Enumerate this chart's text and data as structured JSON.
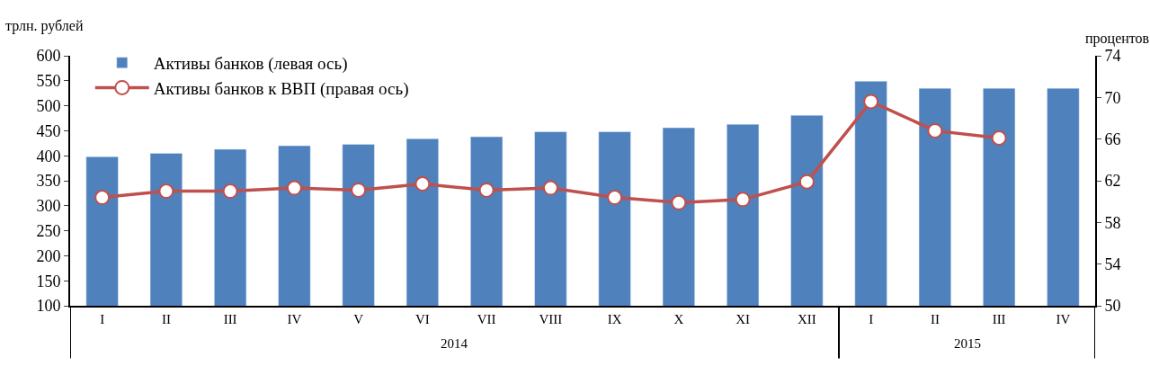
{
  "chart_data": {
    "type": "bar",
    "ylabel": "трлн. рублей",
    "y2label": "процентов",
    "categories": [
      "I",
      "II",
      "III",
      "IV",
      "V",
      "VI",
      "VII",
      "VIII",
      "IX",
      "X",
      "XI",
      "XII",
      "I",
      "II",
      "III",
      "IV"
    ],
    "series": [
      {
        "name": "Активы банков (левая ось)",
        "color": "#4f81bd",
        "values": [
          398,
          405,
          413,
          420,
          423,
          434,
          438,
          448,
          448,
          456,
          463,
          481,
          549,
          535,
          535,
          535
        ]
      },
      {
        "name": "Активы банков к ВВП (правая ось)",
        "type": "line",
        "axis": "y2",
        "color": "#c0504d",
        "marker": "circle",
        "values": [
          60.4,
          61.0,
          61.0,
          61.3,
          61.1,
          61.7,
          61.1,
          61.3,
          60.4,
          59.9,
          60.2,
          61.9,
          69.6,
          66.8,
          66.1,
          null
        ]
      }
    ],
    "ylim": [
      100,
      600
    ],
    "yticks": [
      100,
      150,
      200,
      250,
      300,
      350,
      400,
      450,
      500,
      550,
      600
    ],
    "y2lim": [
      50,
      74
    ],
    "y2ticks": [
      50,
      54,
      58,
      62,
      66,
      70,
      74
    ],
    "annotations": [
      "2014",
      "2015"
    ],
    "legend": "top left"
  }
}
